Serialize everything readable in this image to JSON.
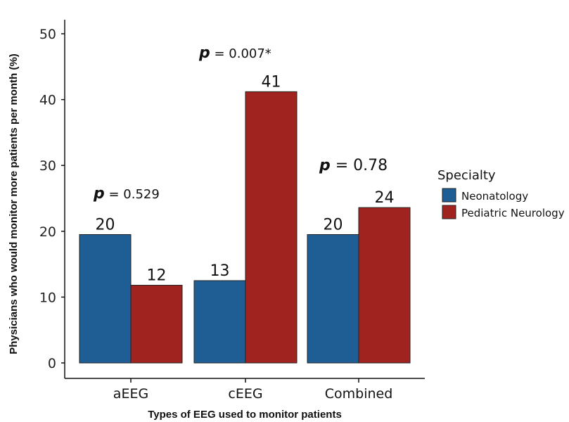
{
  "chart_data": {
    "type": "bar",
    "xlabel": "Types of EEG used to monitor patients",
    "ylabel": "Physicians who would monitor more patients per month (%)",
    "ylim": [
      0,
      50
    ],
    "yticks": [
      0,
      10,
      20,
      30,
      40,
      50
    ],
    "categories": [
      "aEEG",
      "cEEG",
      "Combined"
    ],
    "series": [
      {
        "name": "Neonatology",
        "color": "#1f5d95",
        "values": [
          19.5,
          12.5,
          19.5
        ],
        "labels": [
          "20",
          "13",
          "20"
        ]
      },
      {
        "name": "Pediatric Neurology",
        "color": "#a0231f",
        "values": [
          11.8,
          41.2,
          23.6
        ],
        "labels": [
          "12",
          "41",
          "24"
        ]
      }
    ],
    "annotations": [
      {
        "category": "aEEG",
        "p": "p",
        "text": " = 0.529"
      },
      {
        "category": "cEEG",
        "p": "p",
        "text": " = 0.007*"
      },
      {
        "category": "Combined",
        "p": "p",
        "text": " = 0.78"
      }
    ],
    "legend": {
      "title": "Specialty",
      "position": "right"
    },
    "grid": false
  }
}
